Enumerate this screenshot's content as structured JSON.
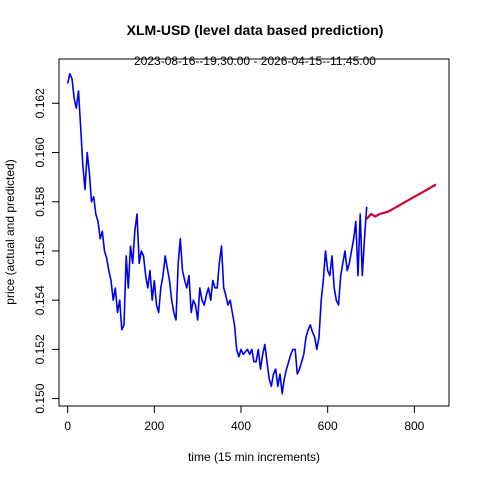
{
  "chart_data": {
    "type": "line",
    "title": "XLM-USD (level data based prediction)",
    "subtitle": "2023-08-16--19:30:00  -  2026-04-15--11:45:00",
    "xlabel": "time (15 min increments)",
    "ylabel": "price (actual and predicted)",
    "xlim": [
      -20,
      880
    ],
    "ylim": [
      0.1497,
      0.1638
    ],
    "x_ticks": [
      0,
      200,
      400,
      600,
      800
    ],
    "y_ticks": [
      0.15,
      0.152,
      0.154,
      0.156,
      0.158,
      0.16,
      0.162
    ],
    "y_tick_labels": [
      "0.150",
      "0.152",
      "0.154",
      "0.156",
      "0.158",
      "0.160",
      "0.162"
    ],
    "grid": false,
    "legend": "none",
    "series": [
      {
        "color": "#0000ee",
        "x": [
          0,
          5,
          10,
          15,
          20,
          25,
          30,
          35,
          40,
          45,
          50,
          55,
          60,
          65,
          70,
          75,
          80,
          85,
          90,
          95,
          100,
          105,
          110,
          115,
          120,
          125,
          130,
          135,
          140,
          145,
          150,
          155,
          160,
          165,
          170,
          175,
          180,
          185,
          190,
          195,
          200,
          205,
          210,
          215,
          220,
          225,
          230,
          235,
          240,
          245,
          250,
          255,
          260,
          265,
          270,
          275,
          280,
          285,
          290,
          295,
          300,
          305,
          310,
          315,
          320,
          325,
          330,
          335,
          340,
          345,
          350,
          355,
          360,
          365,
          370,
          375,
          380,
          385,
          390,
          395,
          400,
          405,
          410,
          415,
          420,
          425,
          430,
          435,
          440,
          445,
          450,
          455,
          460,
          465,
          470,
          475,
          480,
          485,
          490,
          495,
          500,
          505,
          510,
          515,
          520,
          525,
          530,
          535,
          540,
          545,
          550,
          555,
          560,
          565,
          570,
          575,
          580,
          585,
          590,
          595,
          600,
          605,
          610,
          615,
          620,
          625,
          630,
          635,
          640,
          645,
          650,
          655,
          660,
          665,
          670,
          675,
          680,
          685,
          690
        ],
        "y": [
          0.1628,
          0.1632,
          0.163,
          0.1622,
          0.1618,
          0.1625,
          0.161,
          0.1595,
          0.1585,
          0.16,
          0.1592,
          0.158,
          0.1582,
          0.1575,
          0.1572,
          0.1565,
          0.1568,
          0.156,
          0.1557,
          0.1552,
          0.1548,
          0.154,
          0.1545,
          0.1535,
          0.154,
          0.1528,
          0.153,
          0.1558,
          0.1545,
          0.1562,
          0.1555,
          0.1568,
          0.1575,
          0.1555,
          0.156,
          0.1558,
          0.155,
          0.1545,
          0.1552,
          0.154,
          0.1548,
          0.1538,
          0.1535,
          0.1545,
          0.155,
          0.1558,
          0.1553,
          0.1548,
          0.154,
          0.1535,
          0.1532,
          0.1555,
          0.1565,
          0.1552,
          0.1548,
          0.1545,
          0.155,
          0.1535,
          0.154,
          0.1538,
          0.1532,
          0.1545,
          0.154,
          0.1538,
          0.1542,
          0.1545,
          0.154,
          0.1548,
          0.1545,
          0.1545,
          0.1555,
          0.1562,
          0.1545,
          0.1542,
          0.1538,
          0.154,
          0.1535,
          0.153,
          0.152,
          0.1517,
          0.152,
          0.1518,
          0.1519,
          0.152,
          0.1518,
          0.152,
          0.1515,
          0.1515,
          0.152,
          0.1512,
          0.1518,
          0.1522,
          0.1515,
          0.1508,
          0.1505,
          0.151,
          0.1512,
          0.1505,
          0.151,
          0.1502,
          0.1508,
          0.1512,
          0.1515,
          0.1518,
          0.152,
          0.152,
          0.151,
          0.1512,
          0.1515,
          0.1518,
          0.1525,
          0.1528,
          0.153,
          0.1527,
          0.1525,
          0.152,
          0.1525,
          0.154,
          0.1548,
          0.156,
          0.1552,
          0.155,
          0.1558,
          0.1545,
          0.154,
          0.1538,
          0.155,
          0.1555,
          0.156,
          0.1552,
          0.1555,
          0.156,
          0.1565,
          0.1572,
          0.155,
          0.1575,
          0.155,
          0.1565,
          0.1578
        ]
      },
      {
        "color": "#cc0033",
        "x": [
          690,
          700,
          710,
          720,
          740,
          760,
          780,
          800,
          820,
          840,
          850
        ],
        "y": [
          0.1573,
          0.1575,
          0.1574,
          0.1575,
          0.1576,
          0.1578,
          0.158,
          0.1582,
          0.1584,
          0.1586,
          0.1587
        ]
      }
    ]
  }
}
